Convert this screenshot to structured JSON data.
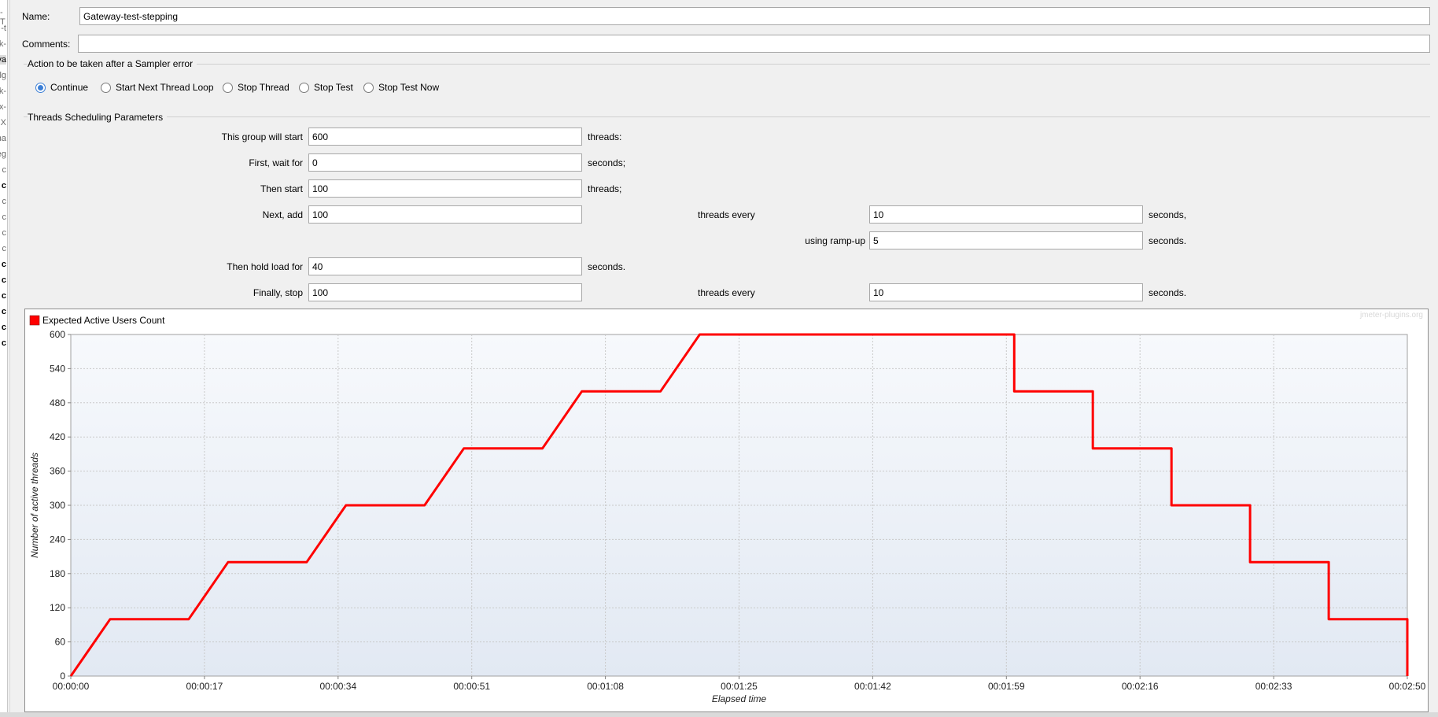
{
  "tree": {
    "items": [
      {
        "t": "-T",
        "y": 10
      },
      {
        "t": "-t",
        "y": 30
      },
      {
        "t": "k-",
        "y": 50
      },
      {
        "t": "va",
        "y": 70,
        "sel": true
      },
      {
        "t": "lg",
        "y": 90
      },
      {
        "t": "k-",
        "y": 110
      },
      {
        "t": "x-",
        "y": 130
      },
      {
        "t": "X",
        "y": 150
      },
      {
        "t": "na",
        "y": 170
      },
      {
        "t": "eg",
        "y": 190
      },
      {
        "t": "c",
        "y": 210
      },
      {
        "t": "c",
        "y": 230,
        "b": true
      },
      {
        "t": "c",
        "y": 250
      },
      {
        "t": "c",
        "y": 270
      },
      {
        "t": "c",
        "y": 290
      },
      {
        "t": "c",
        "y": 310
      },
      {
        "t": "c",
        "y": 330,
        "b": true
      },
      {
        "t": "c",
        "y": 350,
        "b": true
      },
      {
        "t": "c",
        "y": 370,
        "b": true
      },
      {
        "t": "c",
        "y": 390,
        "b": true
      },
      {
        "t": "c",
        "y": 410,
        "b": true
      },
      {
        "t": "c",
        "y": 430,
        "b": true
      }
    ]
  },
  "form": {
    "name_label": "Name:",
    "name_value": "Gateway-test-stepping",
    "comments_label": "Comments:",
    "comments_value": "",
    "error_group_title": "Action to be taken after a Sampler error",
    "error_options": [
      "Continue",
      "Start Next Thread Loop",
      "Stop Thread",
      "Stop Test",
      "Stop Test Now"
    ],
    "error_selected": "Continue",
    "sched_group_title": "Threads Scheduling Parameters",
    "rows": {
      "start_label": "This group will start",
      "start_value": "600",
      "start_unit": "threads:",
      "wait_label": "First, wait for",
      "wait_value": "0",
      "wait_unit": "seconds;",
      "then_label": "Then start",
      "then_value": "100",
      "then_unit": "threads;",
      "add_label": "Next, add",
      "add_value": "100",
      "add_mid": "threads every",
      "add_every_value": "10",
      "add_every_unit": "seconds,",
      "ramp_label": "using ramp-up",
      "ramp_value": "5",
      "ramp_unit": "seconds.",
      "hold_label": "Then hold load for",
      "hold_value": "40",
      "hold_unit": "seconds.",
      "stop_label": "Finally, stop",
      "stop_value": "100",
      "stop_mid": "threads every",
      "stop_every_value": "10",
      "stop_every_unit": "seconds."
    }
  },
  "chart_data": {
    "type": "line",
    "legend": "Expected Active Users Count",
    "legend_color": "#ff0000",
    "watermark": "jmeter-plugins.org",
    "xlabel": "Elapsed time",
    "ylabel": "Number of active threads",
    "xlim": [
      0,
      170
    ],
    "ylim": [
      0,
      600
    ],
    "x_ticks": [
      0,
      17,
      34,
      51,
      68,
      85,
      102,
      119,
      136,
      153,
      170
    ],
    "x_tick_labels": [
      "00:00:00",
      "00:00:17",
      "00:00:34",
      "00:00:51",
      "00:01:08",
      "00:01:25",
      "00:01:42",
      "00:01:59",
      "00:02:16",
      "00:02:33",
      "00:02:50"
    ],
    "y_ticks": [
      0,
      60,
      120,
      180,
      240,
      300,
      360,
      420,
      480,
      540,
      600
    ],
    "grid": true,
    "series": [
      {
        "name": "Expected Active Users Count",
        "color": "#ff0000",
        "x": [
          0,
          5,
          15,
          20,
          30,
          35,
          45,
          50,
          60,
          65,
          75,
          80,
          120,
          120,
          130,
          130,
          140,
          140,
          150,
          150,
          160,
          160,
          170,
          170
        ],
        "y": [
          0,
          100,
          100,
          200,
          200,
          300,
          300,
          400,
          400,
          500,
          500,
          600,
          600,
          500,
          500,
          400,
          400,
          300,
          300,
          200,
          200,
          100,
          100,
          0
        ]
      }
    ]
  }
}
